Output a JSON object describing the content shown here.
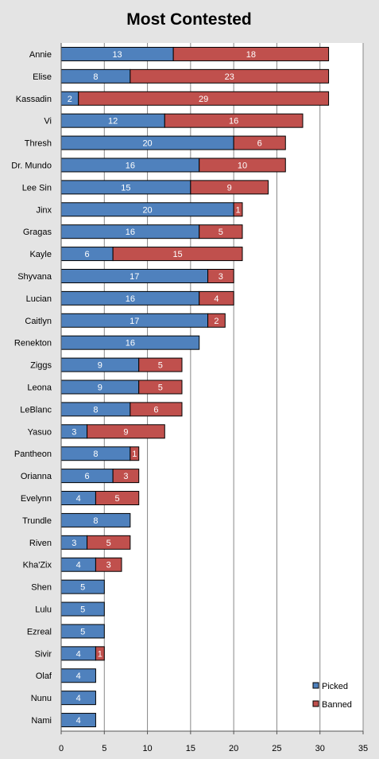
{
  "chart_data": {
    "type": "bar",
    "orientation": "horizontal",
    "stacked": true,
    "title": "Most Contested",
    "xlabel": "",
    "ylabel": "",
    "xlim": [
      0,
      35
    ],
    "x_ticks": [
      "0",
      "5",
      "10",
      "15",
      "20",
      "25",
      "30",
      "35"
    ],
    "grid": "vertical",
    "legend_position": "bottom-right",
    "categories": [
      "Annie",
      "Elise",
      "Kassadin",
      "Vi",
      "Thresh",
      "Dr. Mundo",
      "Lee Sin",
      "Jinx",
      "Gragas",
      "Kayle",
      "Shyvana",
      "Lucian",
      "Caitlyn",
      "Renekton",
      "Ziggs",
      "Leona",
      "LeBlanc",
      "Yasuo",
      "Pantheon",
      "Orianna",
      "Evelynn",
      "Trundle",
      "Riven",
      "Kha'Zix",
      "Shen",
      "Lulu",
      "Ezreal",
      "Sivir",
      "Olaf",
      "Nunu",
      "Nami"
    ],
    "series": [
      {
        "name": "Picked",
        "color": "#4f81bd",
        "values": [
          13,
          8,
          2,
          12,
          20,
          16,
          15,
          20,
          16,
          6,
          17,
          16,
          17,
          16,
          9,
          9,
          8,
          3,
          8,
          6,
          4,
          8,
          3,
          4,
          5,
          5,
          5,
          4,
          4,
          4,
          4
        ]
      },
      {
        "name": "Banned",
        "color": "#c0504d",
        "values": [
          18,
          23,
          29,
          16,
          6,
          10,
          9,
          1,
          5,
          15,
          3,
          4,
          2,
          0,
          5,
          5,
          6,
          9,
          1,
          3,
          5,
          0,
          5,
          3,
          0,
          0,
          0,
          1,
          0,
          0,
          0
        ]
      }
    ]
  },
  "colors": {
    "background": "#e4e4e4",
    "plot_background": "#ffffff",
    "gridline": "#888888",
    "bar_border": "#000000",
    "value_label": "#ffffff"
  }
}
